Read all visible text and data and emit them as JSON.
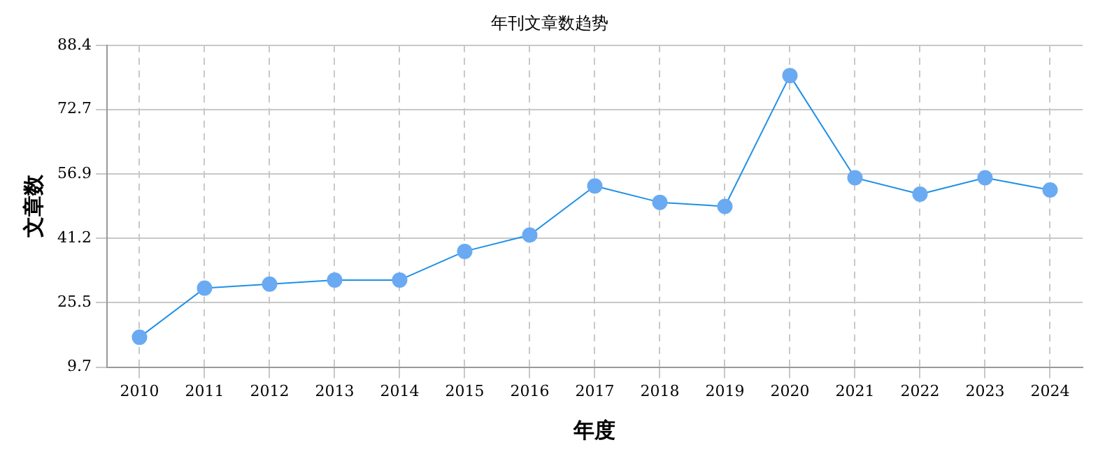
{
  "chart_data": {
    "type": "line",
    "title": "年刊文章数趋势",
    "xlabel": "年度",
    "ylabel": "文章数",
    "categories": [
      "2010",
      "2011",
      "2012",
      "2013",
      "2014",
      "2015",
      "2016",
      "2017",
      "2018",
      "2019",
      "2020",
      "2021",
      "2022",
      "2023",
      "2024"
    ],
    "series": [
      {
        "color": "#1e90e8",
        "values": [
          17,
          29,
          30,
          31,
          31,
          38,
          42,
          54,
          50,
          49,
          81,
          56,
          52,
          56,
          53
        ]
      }
    ],
    "ylim": [
      9.7,
      88.4
    ],
    "yticks": [
      9.7,
      25.5,
      41.2,
      56.9,
      72.7,
      88.4
    ],
    "grid": true,
    "marker": "circle",
    "line_style": "solid",
    "legend": false
  }
}
